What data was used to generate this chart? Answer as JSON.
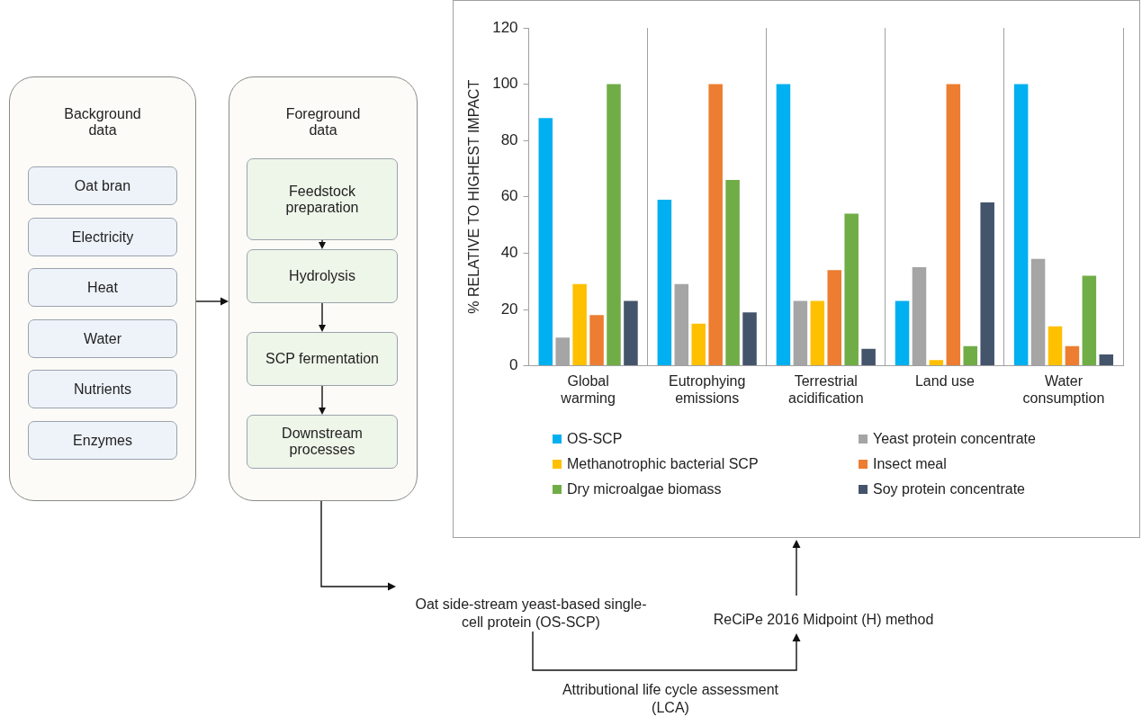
{
  "chart_data": {
    "type": "bar",
    "ylabel": "% RELATIVE TO HIGHEST IMPACT",
    "categories": [
      "Global warming",
      "Eutrophying emissions",
      "Terrestrial acidification",
      "Land use",
      "Water consumption"
    ],
    "series": [
      {
        "name": "OS-SCP",
        "color": "#00b0f0",
        "values": [
          88,
          59,
          100,
          23,
          100
        ]
      },
      {
        "name": "Yeast protein concentrate",
        "color": "#a5a5a5",
        "values": [
          10,
          29,
          23,
          35,
          38
        ]
      },
      {
        "name": "Methanotrophic bacterial SCP",
        "color": "#ffc000",
        "values": [
          29,
          15,
          23,
          2,
          14
        ]
      },
      {
        "name": "Insect meal",
        "color": "#ed7d31",
        "values": [
          18,
          100,
          34,
          100,
          7
        ]
      },
      {
        "name": "Dry microalgae biomass",
        "color": "#70ad47",
        "values": [
          100,
          66,
          54,
          7,
          32
        ]
      },
      {
        "name": "Soy protein concentrate",
        "color": "#44546a",
        "values": [
          23,
          19,
          6,
          58,
          4
        ]
      }
    ],
    "ylim": [
      0,
      120
    ],
    "yticks": [
      0,
      20,
      40,
      60,
      80,
      100,
      120
    ],
    "grid": "x",
    "legend": "bottom",
    "annotations": [
      "Background data",
      "Oat bran",
      "Electricity",
      "Heat",
      "Water",
      "Nutrients",
      "Enzymes",
      "Foreground data",
      "Feedstock preparation",
      "Hydrolysis",
      "SCP fermentation",
      "Downstream processes",
      "Oat side-stream yeast-based single-cell protein (OS-SCP)",
      "ReCiPe 2016 Midpoint (H) method",
      "Attributional life cycle assessment (LCA)"
    ]
  }
}
